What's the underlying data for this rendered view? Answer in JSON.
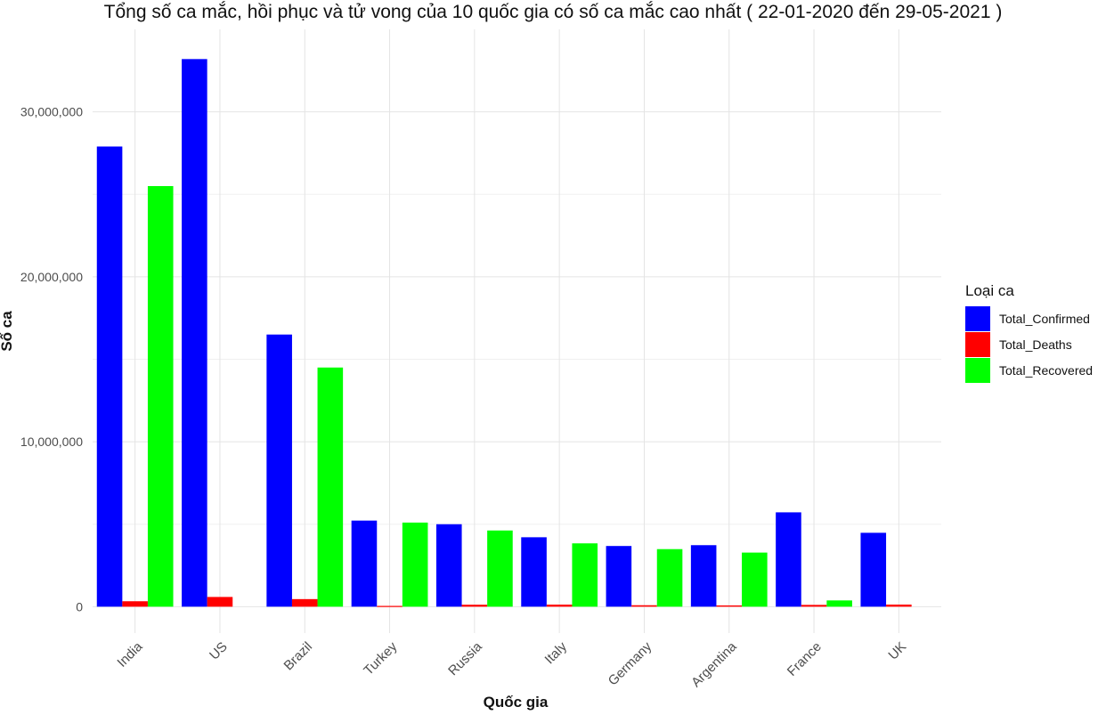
{
  "chart_data": {
    "type": "bar",
    "title": "Tổng số ca mắc, hồi phục và tử vong của 10 quốc gia có số ca mắc cao nhất ( 22-01-2020  đến  29-05-2021 )",
    "xlabel": "Quốc gia",
    "ylabel": "Số ca",
    "categories": [
      "India",
      "US",
      "Brazil",
      "Turkey",
      "Russia",
      "Italy",
      "Germany",
      "Argentina",
      "France",
      "UK"
    ],
    "ylim": [
      -1600000,
      35000000
    ],
    "yticks": [
      0,
      10000000,
      20000000,
      30000000
    ],
    "ytick_labels": [
      "0",
      "10,000,000",
      "20,000,000",
      "30,000,000"
    ],
    "grid": true,
    "legend": {
      "title": "Loại ca",
      "position": "right"
    },
    "series": [
      {
        "name": "Total_Confirmed",
        "color": "#0000ff",
        "values": [
          27900000,
          33200000,
          16500000,
          5220000,
          5000000,
          4210000,
          3680000,
          3730000,
          5720000,
          4480000
        ]
      },
      {
        "name": "Total_Deaths",
        "color": "#ff0000",
        "values": [
          330000,
          590000,
          460000,
          47000,
          120000,
          126000,
          88000,
          77000,
          109000,
          128000
        ]
      },
      {
        "name": "Total_Recovered",
        "color": "#00ff00",
        "values": [
          25500000,
          0,
          14500000,
          5100000,
          4620000,
          3840000,
          3490000,
          3280000,
          380000,
          0
        ]
      }
    ]
  }
}
